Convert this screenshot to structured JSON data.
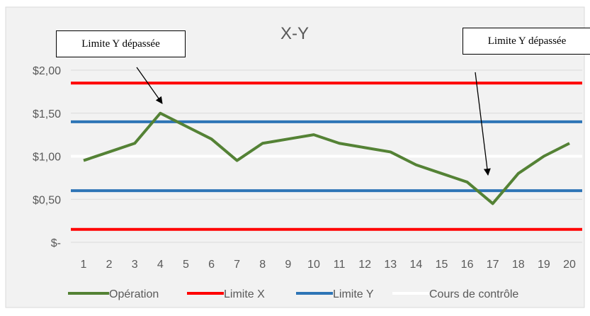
{
  "chart_data": {
    "type": "line",
    "title": "X-Y",
    "categories": [
      "1",
      "2",
      "3",
      "4",
      "5",
      "6",
      "7",
      "8",
      "9",
      "10",
      "11",
      "12",
      "13",
      "14",
      "15",
      "16",
      "17",
      "18",
      "19",
      "20"
    ],
    "ylim": [
      0,
      2.0
    ],
    "yticks": [
      {
        "value": 0,
        "label": "$-"
      },
      {
        "value": 0.5,
        "label": "$0,50"
      },
      {
        "value": 1.0,
        "label": "$1,00"
      },
      {
        "value": 1.5,
        "label": "$1,50"
      },
      {
        "value": 2.0,
        "label": "$2,00"
      }
    ],
    "grid": true,
    "legend_position": "bottom",
    "series": [
      {
        "name": "Opération",
        "color": "#548235",
        "values": [
          0.95,
          1.05,
          1.15,
          1.5,
          1.35,
          1.2,
          0.95,
          1.15,
          1.2,
          1.25,
          1.15,
          1.1,
          1.05,
          0.9,
          0.8,
          0.7,
          0.45,
          0.8,
          1.0,
          1.15
        ]
      },
      {
        "name": "Limite X",
        "color": "#ff0000",
        "values": [
          1.85,
          1.85,
          1.85,
          1.85,
          1.85,
          1.85,
          1.85,
          1.85,
          1.85,
          1.85,
          1.85,
          1.85,
          1.85,
          1.85,
          1.85,
          1.85,
          1.85,
          1.85,
          1.85,
          1.85
        ]
      },
      {
        "name": "Limite Y",
        "color": "#2e75b6",
        "values": [
          1.4,
          1.4,
          1.4,
          1.4,
          1.4,
          1.4,
          1.4,
          1.4,
          1.4,
          1.4,
          1.4,
          1.4,
          1.4,
          1.4,
          1.4,
          1.4,
          1.4,
          1.4,
          1.4,
          1.4
        ]
      },
      {
        "name": "Cours de contrôle",
        "color": "#ffffff",
        "values": [
          1.0,
          1.0,
          1.0,
          1.0,
          1.0,
          1.0,
          1.0,
          1.0,
          1.0,
          1.0,
          1.0,
          1.0,
          1.0,
          1.0,
          1.0,
          1.0,
          1.0,
          1.0,
          1.0,
          1.0
        ]
      }
    ],
    "extra_lines": [
      {
        "series_name": "Limite X",
        "color": "#ff0000",
        "value": 0.15
      },
      {
        "series_name": "Limite Y",
        "color": "#2e75b6",
        "value": 0.6
      }
    ],
    "annotations": [
      {
        "text": "Limite Y dépassée",
        "points_to_category": "4",
        "points_to_value": 1.5
      },
      {
        "text": "Limite Y dépassée",
        "points_to_category": "17",
        "points_to_value": 0.45
      }
    ],
    "colors": {
      "plot_background": "#f2f2f2",
      "gridline": "#d9d9d9",
      "text": "#595959",
      "arrow": "#000000"
    }
  }
}
